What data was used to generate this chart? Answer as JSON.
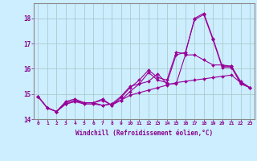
{
  "xlabel": "Windchill (Refroidissement éolien,°C)",
  "background_color": "#cceeff",
  "grid_color": "#aacccc",
  "line_color": "#990099",
  "xlim": [
    -0.5,
    23.5
  ],
  "ylim": [
    14.0,
    18.6
  ],
  "yticks": [
    14,
    15,
    16,
    17,
    18
  ],
  "xticks": [
    0,
    1,
    2,
    3,
    4,
    5,
    6,
    7,
    8,
    9,
    10,
    11,
    12,
    13,
    14,
    15,
    16,
    17,
    18,
    19,
    20,
    21,
    22,
    23
  ],
  "series": [
    [
      14.9,
      14.45,
      14.3,
      14.6,
      14.7,
      14.65,
      14.65,
      14.55,
      14.6,
      14.75,
      14.95,
      15.05,
      15.15,
      15.25,
      15.35,
      15.45,
      15.5,
      15.55,
      15.6,
      15.65,
      15.7,
      15.75,
      15.45,
      15.25
    ],
    [
      14.9,
      14.45,
      14.3,
      14.6,
      14.7,
      14.6,
      14.6,
      14.55,
      14.6,
      14.9,
      15.3,
      15.4,
      15.5,
      15.8,
      15.4,
      15.4,
      16.55,
      16.55,
      16.35,
      16.15,
      16.15,
      16.1,
      15.4,
      15.25
    ],
    [
      14.9,
      14.45,
      14.3,
      14.65,
      14.75,
      14.65,
      14.65,
      14.75,
      14.55,
      14.75,
      15.1,
      15.4,
      15.85,
      15.55,
      15.45,
      16.55,
      16.65,
      17.95,
      18.15,
      17.15,
      16.05,
      16.05,
      15.45,
      15.25
    ],
    [
      14.9,
      14.45,
      14.3,
      14.7,
      14.8,
      14.65,
      14.65,
      14.8,
      14.55,
      14.85,
      15.25,
      15.55,
      15.95,
      15.65,
      15.55,
      16.65,
      16.6,
      18.0,
      18.2,
      17.2,
      16.1,
      16.1,
      15.5,
      15.25
    ]
  ]
}
